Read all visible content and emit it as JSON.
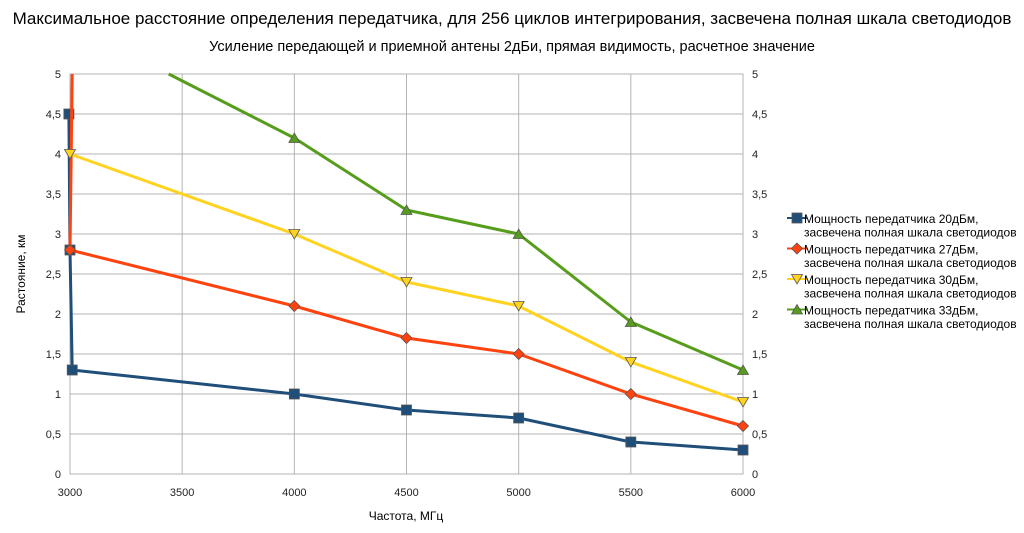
{
  "chart_data": {
    "type": "line",
    "title": "Максимальное расстояние определения передатчика, для 256 циклов интегрирования, засвечена полная шкала светодиодов",
    "subtitle": "Усиление передающей и приемной антены 2дБи, прямая видимость, расчетное значение",
    "xlabel": "Частота, МГц",
    "ylabel": "Растояние, км",
    "xlim": [
      3000,
      6000
    ],
    "ylim": [
      0,
      5
    ],
    "x_ticks": [
      "3000",
      "3500",
      "4000",
      "4500",
      "5000",
      "5500",
      "6000"
    ],
    "y_ticks": [
      "0",
      "0,5",
      "1",
      "1,5",
      "2",
      "2,5",
      "3",
      "3,5",
      "4",
      "4,5",
      "5"
    ],
    "y_ticks_right": [
      "0",
      "0,5",
      "1",
      "1,5",
      "2",
      "2,5",
      "3",
      "3,5",
      "4",
      "4,5",
      "5"
    ],
    "grid": true,
    "legend_position": "right",
    "series": [
      {
        "name": "Мощность передатчика 20дБм, засвечена полная шкала светодиодов",
        "name_lines": [
          "Мощность передатчика 20дБм,",
          "засвечена полная шкала светодиодов"
        ],
        "color": "#1f4e79",
        "marker": "square",
        "points": [
          [
            2995,
            4.5
          ],
          [
            3000,
            2.8
          ],
          [
            3010,
            1.3
          ],
          [
            4000,
            1.0
          ],
          [
            4500,
            0.8
          ],
          [
            5000,
            0.7
          ],
          [
            5500,
            0.4
          ],
          [
            6000,
            0.3
          ]
        ]
      },
      {
        "name": "Мощность передатчика 27дБм, засвечена полная шкала светодиодов",
        "name_lines": [
          "Мощность передатчика 27дБм,",
          "засвечена полная шкала светодиодов"
        ],
        "color": "#ff420e",
        "marker": "diamond",
        "points": [
          [
            3010,
            5.0
          ],
          [
            3000,
            2.8
          ],
          [
            4000,
            2.1
          ],
          [
            4500,
            1.7
          ],
          [
            5000,
            1.5
          ],
          [
            5500,
            1.0
          ],
          [
            6000,
            0.6
          ]
        ]
      },
      {
        "name": "Мощность передатчика 30дБм, засвечена полная шкала светодиодов",
        "name_lines": [
          "Мощность передатчика 30дБм,",
          "засвечена полная шкала светодиодов"
        ],
        "color": "#ffd320",
        "marker": "triangle-down",
        "points": [
          [
            3000,
            4.0
          ],
          [
            4000,
            3.0
          ],
          [
            4500,
            2.4
          ],
          [
            5000,
            2.1
          ],
          [
            5500,
            1.4
          ],
          [
            6000,
            0.9
          ]
        ]
      },
      {
        "name": "Мощность передатчика 33дБм, засвечена полная шкала светодиодов",
        "name_lines": [
          "Мощность передатчика 33дБм,",
          "засвечена полная шкала светодиодов"
        ],
        "color": "#579d1c",
        "marker": "triangle-up",
        "points": [
          [
            3440,
            5.0
          ],
          [
            4000,
            4.2
          ],
          [
            4500,
            3.3
          ],
          [
            5000,
            3.0
          ],
          [
            5500,
            1.9
          ],
          [
            6000,
            1.3
          ]
        ]
      }
    ]
  }
}
